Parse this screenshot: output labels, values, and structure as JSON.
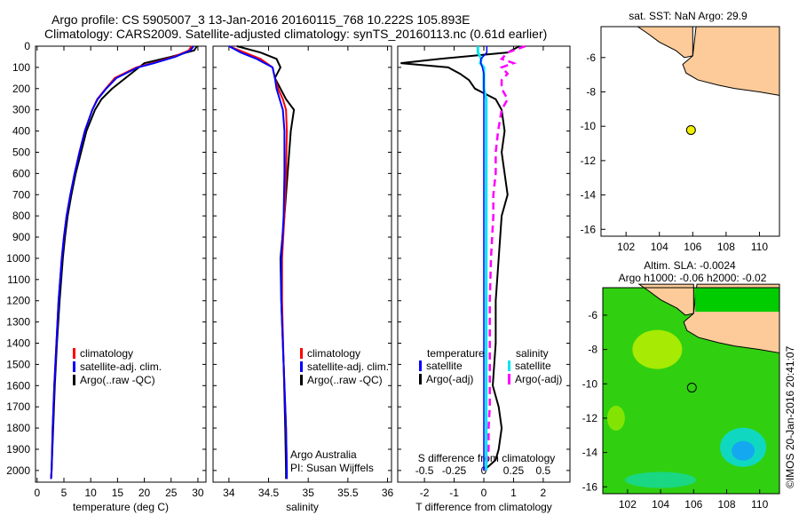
{
  "title": {
    "line1": "Argo profile: CS 5905007_3 13-Jan-2016 20160115_768 10.222S 105.893E",
    "line2": "Climatology: CARS2009. Satellite-adjusted climatology: synTS_20160113.nc (0.61d earlier)"
  },
  "colors": {
    "climatology": "#ff0000",
    "satellite": "#0000ff",
    "argo": "#000000",
    "sal_sat": "#00e5ee",
    "sal_argo": "#ff00ff",
    "land": "#fccb99"
  },
  "chart_data": [
    {
      "type": "line",
      "name": "temperature",
      "xlabel": "temperature (deg C)",
      "xlim": [
        -0.3,
        31.5
      ],
      "ylim": [
        0,
        2055
      ],
      "xticks": [
        "0",
        "5",
        "10",
        "15",
        "20",
        "25",
        "30"
      ],
      "xtickvals": [
        0,
        5,
        10,
        15,
        20,
        25,
        30
      ],
      "yticks": [
        "0",
        "100",
        "200",
        "300",
        "400",
        "500",
        "600",
        "700",
        "800",
        "900",
        "1000",
        "1100",
        "1200",
        "1300",
        "1400",
        "1500",
        "1600",
        "1700",
        "1800",
        "1900",
        "2000"
      ],
      "depth": [
        0,
        20,
        50,
        80,
        100,
        150,
        200,
        250,
        300,
        400,
        500,
        600,
        700,
        800,
        900,
        1000,
        1200,
        1400,
        1600,
        1800,
        2000,
        2040
      ],
      "series": [
        {
          "name": "climatology",
          "values": [
            28.8,
            28.3,
            25.5,
            21.5,
            18.5,
            14.5,
            12.8,
            11.2,
            10.3,
            8.9,
            7.9,
            7.0,
            6.2,
            5.5,
            5.0,
            4.6,
            4.0,
            3.6,
            3.2,
            2.9,
            2.7,
            2.6
          ]
        },
        {
          "name": "satellite-adj. clim.",
          "values": [
            29.2,
            28.6,
            25.8,
            21.8,
            18.8,
            14.8,
            12.9,
            11.3,
            10.3,
            8.9,
            7.9,
            7.0,
            6.2,
            5.5,
            5.0,
            4.6,
            4.0,
            3.6,
            3.2,
            2.9,
            2.7,
            2.6
          ]
        },
        {
          "name": "Argo(..raw -QC)",
          "values": [
            29.8,
            29.3,
            25.0,
            20.0,
            19.0,
            16.5,
            14.0,
            12.0,
            10.8,
            9.2,
            8.2,
            7.2,
            6.4,
            5.7,
            5.2,
            4.8,
            4.2,
            3.7,
            3.3,
            3.0,
            2.7,
            2.6
          ]
        }
      ],
      "legend": [
        "climatology",
        "satellite-adj. clim.",
        "Argo(..raw -QC)"
      ]
    },
    {
      "type": "line",
      "name": "salinity",
      "xlabel": "salinity",
      "xlim": [
        33.8,
        36.05
      ],
      "ylim": [
        0,
        2055
      ],
      "xticks": [
        "34",
        "34.5",
        "35",
        "35.5",
        "36"
      ],
      "xtickvals": [
        34,
        34.5,
        35,
        35.5,
        36
      ],
      "depth": [
        0,
        30,
        60,
        100,
        150,
        200,
        250,
        300,
        400,
        600,
        800,
        1000,
        1200,
        1500,
        1800,
        2000,
        2040
      ],
      "series": [
        {
          "name": "climatology",
          "values": [
            34.0,
            34.2,
            34.4,
            34.55,
            34.58,
            34.62,
            34.68,
            34.72,
            34.73,
            34.72,
            34.7,
            34.67,
            34.67,
            34.69,
            34.72,
            34.73,
            34.73
          ]
        },
        {
          "name": "satellite-adj. clim.",
          "values": [
            34.0,
            34.15,
            34.35,
            34.55,
            34.58,
            34.6,
            34.64,
            34.68,
            34.7,
            34.7,
            34.69,
            34.66,
            34.66,
            34.69,
            34.72,
            34.73,
            34.73
          ]
        },
        {
          "name": "Argo(..raw -QC)",
          "values": [
            34.1,
            34.4,
            34.6,
            34.65,
            34.58,
            34.65,
            34.72,
            34.82,
            34.78,
            34.74,
            34.7,
            34.65,
            34.66,
            34.69,
            34.71,
            34.72,
            34.72
          ]
        }
      ],
      "legend": [
        "climatology",
        "satellite-adj. clim.",
        "Argo(..raw -QC)"
      ],
      "annotation": [
        "Argo Australia",
        "PI: Susan Wijffels"
      ]
    },
    {
      "type": "line",
      "name": "differences",
      "xlabel": "T difference from climatology",
      "x2label": "S difference from climatology",
      "xlim": [
        -2.9,
        2.9
      ],
      "ylim": [
        0,
        2055
      ],
      "xticks": [
        "-2",
        "-1",
        "0",
        "1",
        "2"
      ],
      "xtickvals": [
        -2,
        -1,
        0,
        1,
        2
      ],
      "x2ticks": [
        "-0.5",
        "-0.25",
        "0",
        "0.25",
        "0.5"
      ],
      "x2tickvals": [
        -0.5,
        -0.25,
        0,
        0.25,
        0.5
      ],
      "depth": [
        0,
        30,
        60,
        80,
        100,
        130,
        160,
        200,
        250,
        300,
        400,
        500,
        600,
        700,
        800,
        1000,
        1200,
        1400,
        1600,
        1700,
        1800,
        1900,
        1950,
        2000
      ],
      "series": [
        {
          "name": "T satellite",
          "values": [
            0.1,
            0.1,
            -0.1,
            -0.1,
            -0.05,
            0,
            0,
            0,
            0,
            0,
            0,
            0,
            0,
            0,
            0,
            0,
            0,
            0,
            0,
            0,
            0,
            0,
            0,
            0
          ]
        },
        {
          "name": "T Argo(-adj)",
          "values": [
            1.2,
            0.8,
            -1.5,
            -2.8,
            -1.2,
            -0.8,
            -0.5,
            -0.3,
            0.4,
            0.6,
            0.7,
            0.6,
            0.7,
            0.8,
            0.6,
            0.5,
            0.4,
            0.4,
            0.3,
            0.5,
            0.6,
            0.5,
            0.4,
            0.0
          ]
        },
        {
          "name": "S satellite",
          "values": [
            -0.05,
            -0.05,
            -0.02,
            -0.03,
            0,
            0,
            0,
            0,
            0.02,
            0.02,
            0.02,
            0.02,
            0.02,
            0.02,
            0.02,
            0.02,
            0.02,
            0.02,
            0.02,
            0.02,
            0.02,
            0.02,
            0.02,
            0.02
          ]
        },
        {
          "name": "S Argo(-adj)",
          "values": [
            0.35,
            0.2,
            0.15,
            0.25,
            0.15,
            0.2,
            0.15,
            0.15,
            0.2,
            0.15,
            0.12,
            0.1,
            0.1,
            0.08,
            0.08,
            0.06,
            0.05,
            0.05,
            0.05,
            0.05,
            0.04,
            0.04,
            0.03,
            0.0
          ]
        }
      ],
      "legend": {
        "t_head": "temperature",
        "s_head": "salinity",
        "t_items": [
          "satellite",
          "Argo(-adj)"
        ],
        "s_items": [
          "satellite",
          "Argo(-adj)"
        ]
      }
    },
    {
      "type": "map",
      "name": "sst-map",
      "title": "sat. SST: NaN Argo: 29.9",
      "xlim": [
        100.5,
        111.2
      ],
      "ylim": [
        -16.4,
        -4.2
      ],
      "xticks": [
        "102",
        "104",
        "106",
        "108",
        "110"
      ],
      "xtickvals": [
        102,
        104,
        106,
        108,
        110
      ],
      "yticks": [
        "-6",
        "-8",
        "-10",
        "-12",
        "-14",
        "-16"
      ],
      "ytickvals": [
        -6,
        -8,
        -10,
        -12,
        -14,
        -16
      ],
      "point": {
        "lon": 105.893,
        "lat": -10.222
      }
    },
    {
      "type": "map",
      "name": "sla-map",
      "title": "Altim. SLA: -0.0024",
      "subtitle": "Argo h1000: -0.06 h2000: -0.02",
      "xlim": [
        100.5,
        111.2
      ],
      "ylim": [
        -16.4,
        -4.4
      ],
      "xticks": [
        "102",
        "104",
        "106",
        "108",
        "110"
      ],
      "xtickvals": [
        102,
        104,
        106,
        108,
        110
      ],
      "yticks": [
        "-6",
        "-8",
        "-10",
        "-12",
        "-14",
        "-16"
      ],
      "ytickvals": [
        -6,
        -8,
        -10,
        -12,
        -14,
        -16
      ],
      "point": {
        "lon": 105.893,
        "lat": -10.222
      }
    }
  ],
  "credit": "©IMOS 20-Jan-2016 20:41:07"
}
